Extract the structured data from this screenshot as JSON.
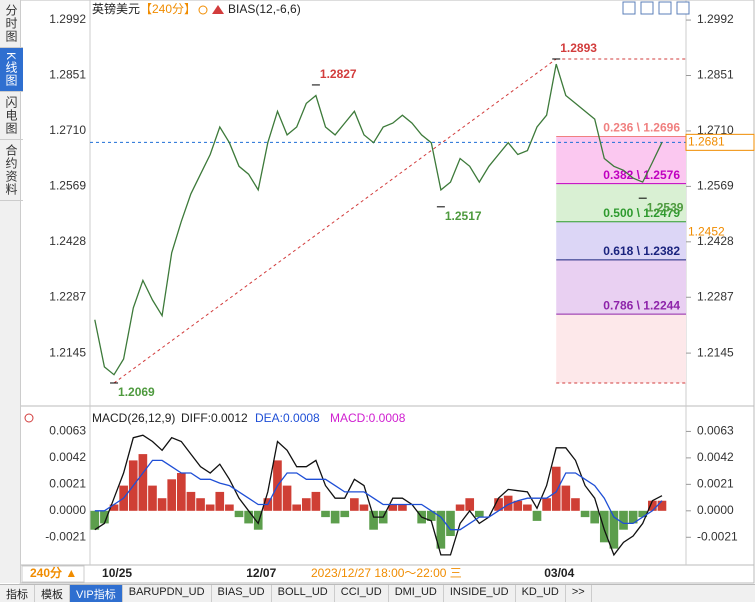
{
  "chart_data": [
    {
      "type": "line",
      "title": "英镑美元",
      "period": "【240分】",
      "indicator": "BIAS(12,-6,6)",
      "categories": [
        null,
        null,
        "10/25",
        null,
        null,
        null,
        null,
        null,
        null,
        null,
        null,
        null,
        null,
        null,
        null,
        null,
        null,
        "12/07",
        null,
        null,
        null,
        null,
        null,
        null,
        null,
        null,
        null,
        null,
        null,
        null,
        null,
        null,
        null,
        null,
        null,
        null,
        null,
        null,
        null,
        null,
        null,
        null,
        null,
        null,
        null,
        null,
        null,
        null,
        "03/04",
        null,
        null,
        null,
        null,
        null,
        null,
        null,
        null,
        null,
        null,
        null,
        null,
        null
      ],
      "values": [
        1.223,
        1.211,
        1.209,
        1.213,
        1.226,
        1.233,
        1.228,
        1.224,
        1.24,
        1.248,
        1.255,
        1.26,
        1.265,
        1.272,
        1.268,
        1.262,
        1.26,
        1.256,
        1.268,
        1.276,
        1.27,
        1.272,
        1.278,
        1.28,
        1.272,
        1.27,
        1.273,
        1.276,
        1.27,
        1.268,
        1.272,
        1.273,
        1.275,
        1.273,
        1.27,
        1.268,
        1.256,
        1.258,
        1.264,
        1.262,
        1.258,
        1.262,
        1.265,
        1.268,
        1.265,
        1.266,
        1.272,
        1.275,
        1.288,
        1.28,
        1.278,
        1.276,
        1.274,
        1.264,
        1.262,
        1.261,
        1.259,
        1.258,
        1.263,
        1.2681,
        null,
        null
      ],
      "color": "#3d7a3a",
      "ylim": [
        1.2013,
        1.3043
      ],
      "yticks": [
        1.2992,
        1.2851,
        {
          "value": 1.271,
          "label": "1.2710"
        },
        1.2569,
        1.2428,
        1.2287,
        1.2145
      ],
      "annotations": [
        {
          "text": "1.2827",
          "value": 1.2827,
          "at": 23,
          "color": "#d23c3c"
        },
        {
          "text": "1.2069",
          "value": 1.2069,
          "at": 2,
          "color": "#4e9a3e"
        },
        {
          "text": "1.2517",
          "value": 1.2517,
          "at": 36,
          "color": "#4e9a3e"
        },
        {
          "text": "1.2893",
          "value": 1.2893,
          "at": 48,
          "color": "#d23c3c"
        },
        {
          "text": "1.2539",
          "value": 1.2539,
          "at": 57,
          "color": "#4e9a3e"
        }
      ],
      "trend_line": {
        "from": [
          2,
          1.2069
        ],
        "to": [
          48,
          1.2893
        ],
        "color": "#d23c3c"
      },
      "fib": {
        "from": 48,
        "high": 1.2893,
        "low": 1.2069,
        "edge_color": "#d23c3c",
        "levels": [
          {
            "label": "0.236 \\ 1.2696",
            "value": 1.2696,
            "color": "#f08080",
            "fill": "#fbc8f0"
          },
          {
            "label": "0.382 \\ 1.2576",
            "value": 1.2576,
            "color": "#c000c0",
            "fill": "#d9f0d3"
          },
          {
            "label": "0.500 \\ 1.2479",
            "value": 1.2479,
            "color": "#2e9a2e",
            "fill": "#dcd6f6"
          },
          {
            "label": "0.618 \\ 1.2382",
            "value": 1.2382,
            "color": "#1a237e",
            "fill": "#e9d0f2"
          },
          {
            "label": "0.786 \\ 1.2244",
            "value": 1.2244,
            "color": "#8e24aa",
            "fill": "#fde8ea"
          }
        ]
      },
      "last_price": {
        "text": "1.2681",
        "value": 1.2681,
        "color": "#f08c00"
      },
      "alert": {
        "text": "1.2452",
        "value": 1.2452,
        "color": "#f08c00"
      }
    },
    {
      "type": "macd",
      "title": "MACD(26,12,9)",
      "diff_label": "DIFF:0.0012",
      "dea_label": "DEA:0.0008",
      "macd_label": "MACD:0.0008",
      "ylim": [
        -0.0043,
        0.008
      ],
      "yticks": [
        0.0063,
        0.0042,
        0.0021,
        {
          "value": 0,
          "label": "0.0000"
        },
        -0.0021
      ],
      "series": [
        {
          "type": "bar",
          "up_color": "#cf3f35",
          "down_color": "#5c9e4c",
          "values": [
            -0.0015,
            -0.001,
            0.0005,
            0.002,
            0.004,
            0.0045,
            0.002,
            0.001,
            0.0025,
            0.003,
            0.0015,
            0.001,
            0.0005,
            0.0015,
            0.0005,
            -0.0005,
            -0.001,
            -0.0015,
            0.001,
            0.004,
            0.002,
            0.0005,
            0.001,
            0.0015,
            -0.0005,
            -0.001,
            -0.0005,
            0.001,
            0.0005,
            -0.0015,
            -0.001,
            0.0005,
            0.0005,
            0,
            -0.001,
            -0.0008,
            -0.003,
            -0.002,
            0.0005,
            0.001,
            -0.0005,
            0,
            0.001,
            0.0012,
            0.0008,
            0.0005,
            -0.0008,
            0.001,
            0.0035,
            0.002,
            0.001,
            -0.0005,
            -0.001,
            -0.0025,
            -0.003,
            -0.0015,
            -0.001,
            -0.0005,
            0.0008,
            0.0008,
            null,
            null
          ]
        },
        {
          "type": "line",
          "color": "#111111",
          "values": [
            -0.0015,
            -0.001,
            0.001,
            0.003,
            0.0058,
            0.006,
            0.0055,
            0.0048,
            0.0058,
            0.0055,
            0.0045,
            0.0035,
            0.003,
            0.0037,
            0.0025,
            0.001,
            0,
            -0.001,
            0.0015,
            0.0055,
            0.0048,
            0.0035,
            0.0035,
            0.004,
            0.002,
            0.001,
            0.001,
            0.0025,
            0.002,
            -0.0005,
            -0.0005,
            0.001,
            0.001,
            0.0005,
            -0.0005,
            -0.0008,
            -0.0035,
            -0.0035,
            -0.001,
            0,
            -0.001,
            -0.0005,
            0.001,
            0.0017,
            0.0016,
            0.0015,
            0.0002,
            0.002,
            0.005,
            0.005,
            0.004,
            0.002,
            0.001,
            -0.0015,
            -0.0035,
            -0.0025,
            -0.002,
            -0.001,
            0.0008,
            0.0012,
            null,
            null
          ]
        },
        {
          "type": "line",
          "color": "#1f4fd6",
          "values": [
            0,
            0,
            0.0005,
            0.001,
            0.002,
            0.003,
            0.004,
            0.004,
            0.0035,
            0.003,
            0.003,
            0.0025,
            0.0025,
            0.0022,
            0.002,
            0.0015,
            0.001,
            0.0005,
            0.0005,
            0.002,
            0.003,
            0.003,
            0.0025,
            0.0025,
            0.0025,
            0.002,
            0.0015,
            0.0015,
            0.0015,
            0.001,
            0.0005,
            0.0005,
            0.0005,
            0.0005,
            0.0005,
            0,
            -0.0005,
            -0.0015,
            -0.0015,
            -0.001,
            -0.0005,
            -0.0005,
            0,
            0.0005,
            0.0008,
            0.001,
            0.001,
            0.001,
            0.0015,
            0.003,
            0.003,
            0.0025,
            0.002,
            0.001,
            -0.0005,
            -0.001,
            -0.001,
            -0.0005,
            0,
            0.0008,
            null,
            null
          ]
        }
      ]
    }
  ],
  "ui": {
    "side_tabs": [
      "分时图",
      "K线图",
      "闪电图",
      "合约资料"
    ],
    "period_button": "240分 ▲",
    "crosshair_time": "2023/12/27 18:00～22:00 三",
    "bottom_tabs": [
      "指标",
      "模板",
      "VIP指标",
      "BARUPDN_UD",
      "BIAS_UD",
      "BOLL_UD",
      "CCI_UD",
      "DMI_UD",
      "INSIDE_UD",
      "KD_UD",
      ">>"
    ]
  }
}
